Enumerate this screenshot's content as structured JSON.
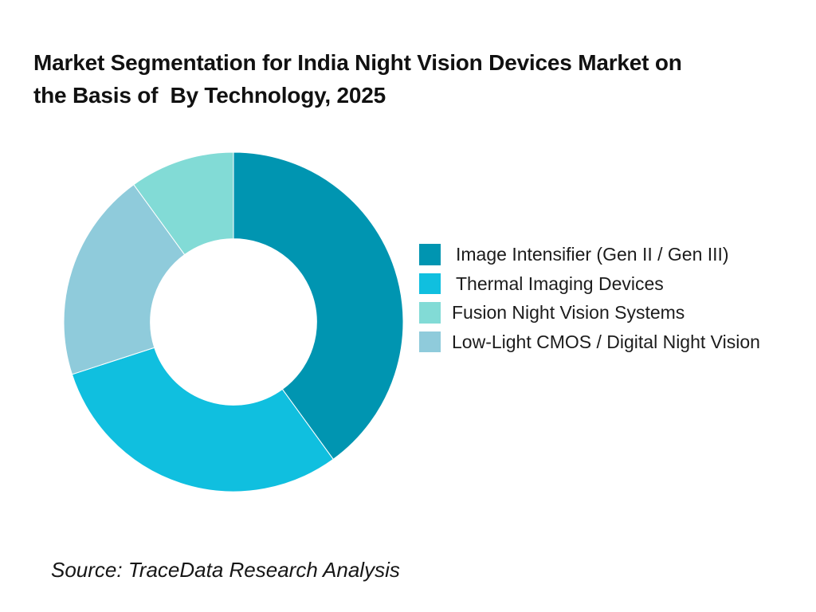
{
  "page": {
    "background_color": "#ffffff"
  },
  "title": {
    "text": "Market Segmentation for India Night Vision Devices Market on the Basis of  By Technology, 2025",
    "lines": [
      "Market Segmentation for India Night Vision Devices Market on",
      "the Basis of  By Technology, 2025"
    ]
  },
  "source_note": "Source: TraceData Research Analysis",
  "chart_data": {
    "type": "pie",
    "variant": "donut",
    "title": "Market Segmentation for India Night Vision Devices Market on the Basis of  By Technology, 2025",
    "unit": "percent",
    "segments": [
      {
        "label": "Image Intensifier (Gen II / Gen III)",
        "value": 40,
        "color": "#0095B1"
      },
      {
        "label": "Thermal Imaging Devices",
        "value": 30,
        "color": "#10BFDF"
      },
      {
        "label": "Fusion Night Vision Systems",
        "value": 10,
        "color": "#82DBD6"
      },
      {
        "label": "Low-Light CMOS / Digital Night Vision",
        "value": 20,
        "color": "#8FCBDB"
      }
    ],
    "clockwise_draw_order": [
      0,
      1,
      3,
      2
    ],
    "start_angle_deg": 0,
    "direction": "clockwise",
    "inner_radius_ratio": 0.49,
    "legend_position": "right",
    "data_labels_visible": false
  }
}
